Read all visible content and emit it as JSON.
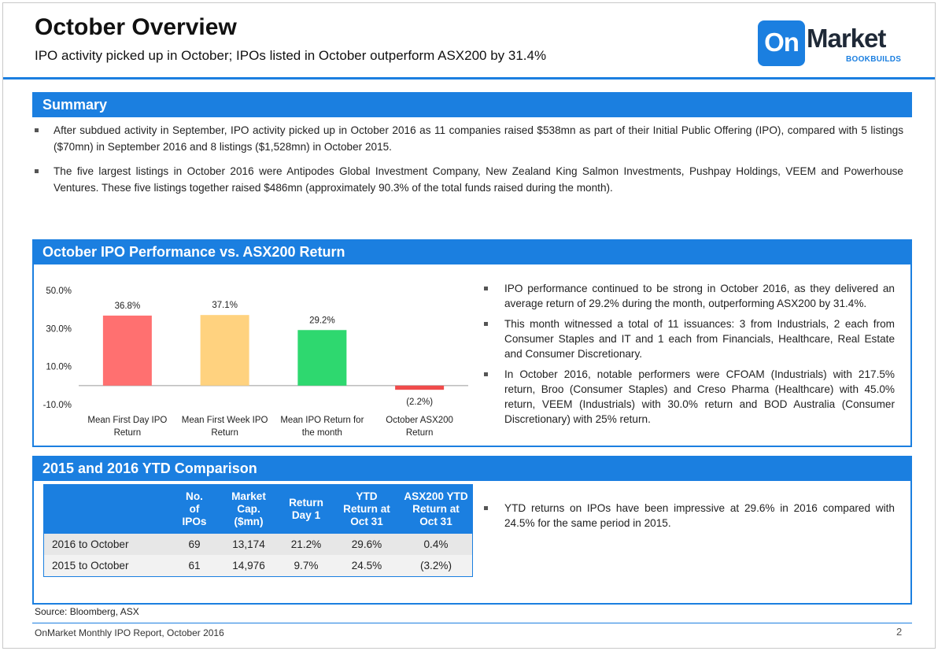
{
  "header": {
    "title": "October Overview",
    "subtitle": "IPO activity picked up in October; IPOs listed in October outperform ASX200 by 31.4%"
  },
  "logo": {
    "primary": "On",
    "secondary": "Market",
    "tagline": "BOOKBUILDS"
  },
  "summary": {
    "heading": "Summary",
    "bullets": [
      "After subdued activity in September, IPO activity picked up in October 2016 as 11 companies raised $538mn as part of their Initial Public Offering (IPO), compared with 5 listings ($70mn) in September 2016 and 8 listings ($1,528mn) in October 2015.",
      "The five largest listings in October 2016 were Antipodes Global Investment Company, New Zealand King Salmon Investments, Pushpay Holdings, VEEM and Powerhouse Ventures. These five listings together raised $486mn (approximately 90.3% of the total funds raised during the month)."
    ]
  },
  "performance": {
    "heading": "October IPO Performance vs. ASX200 Return",
    "bullets": [
      "IPO performance continued to be strong in October 2016, as they delivered an average return of 29.2% during the month, outperforming ASX200 by 31.4%.",
      "This month witnessed a total of 11 issuances: 3 from Industrials, 2 each from Consumer Staples and IT and 1 each from Financials, Healthcare, Real Estate and Consumer Discretionary.",
      "In October 2016, notable performers were CFOAM (Industrials) with 217.5% return, Broo (Consumer Staples) and Creso Pharma (Healthcare) with 45.0% return, VEEM (Industrials) with 30.0% return and BOD Australia (Consumer Discretionary) with 25% return."
    ]
  },
  "chart_data": {
    "type": "bar",
    "categories": [
      [
        "Mean First Day IPO",
        "Return"
      ],
      [
        "Mean First Week IPO",
        "Return"
      ],
      [
        "Mean IPO Return for",
        "the month"
      ],
      [
        "October ASX200",
        "Return"
      ]
    ],
    "values": [
      36.8,
      37.1,
      29.2,
      -2.2
    ],
    "data_labels": [
      "36.8%",
      "37.1%",
      "29.2%",
      "(2.2%)"
    ],
    "colors": [
      "#ff7070",
      "#ffd27f",
      "#2ed86f",
      "#f04b4b"
    ],
    "yticks": [
      "50.0%",
      "30.0%",
      "10.0%",
      "-10.0%"
    ],
    "ytick_values": [
      50,
      30,
      10,
      -10
    ],
    "ylim": [
      -10,
      50
    ],
    "grid": false,
    "legend": "none"
  },
  "ytd": {
    "heading": "2015 and 2016 YTD Comparison",
    "columns": [
      [
        "",
        ""
      ],
      [
        "No.",
        "of",
        "IPOs"
      ],
      [
        "Market",
        "Cap.",
        "($mn)"
      ],
      [
        "Return",
        "Day 1"
      ],
      [
        "YTD",
        "Return at",
        "Oct 31"
      ],
      [
        "ASX200 YTD",
        "Return at",
        "Oct 31"
      ]
    ],
    "rows": [
      [
        "2016 to October",
        "69",
        "13,174",
        "21.2%",
        "29.6%",
        "0.4%"
      ],
      [
        "2015 to October",
        "61",
        "14,976",
        "9.7%",
        "24.5%",
        "(3.2%)"
      ]
    ],
    "bullet": "YTD returns on IPOs have been impressive at 29.6% in 2016 compared with 24.5% for the same period in 2015."
  },
  "source": "Source: Bloomberg, ASX",
  "footer": {
    "report": "OnMarket Monthly IPO Report, October 2016",
    "page": "2"
  },
  "theme": {
    "accent": "#1b7fe0"
  }
}
